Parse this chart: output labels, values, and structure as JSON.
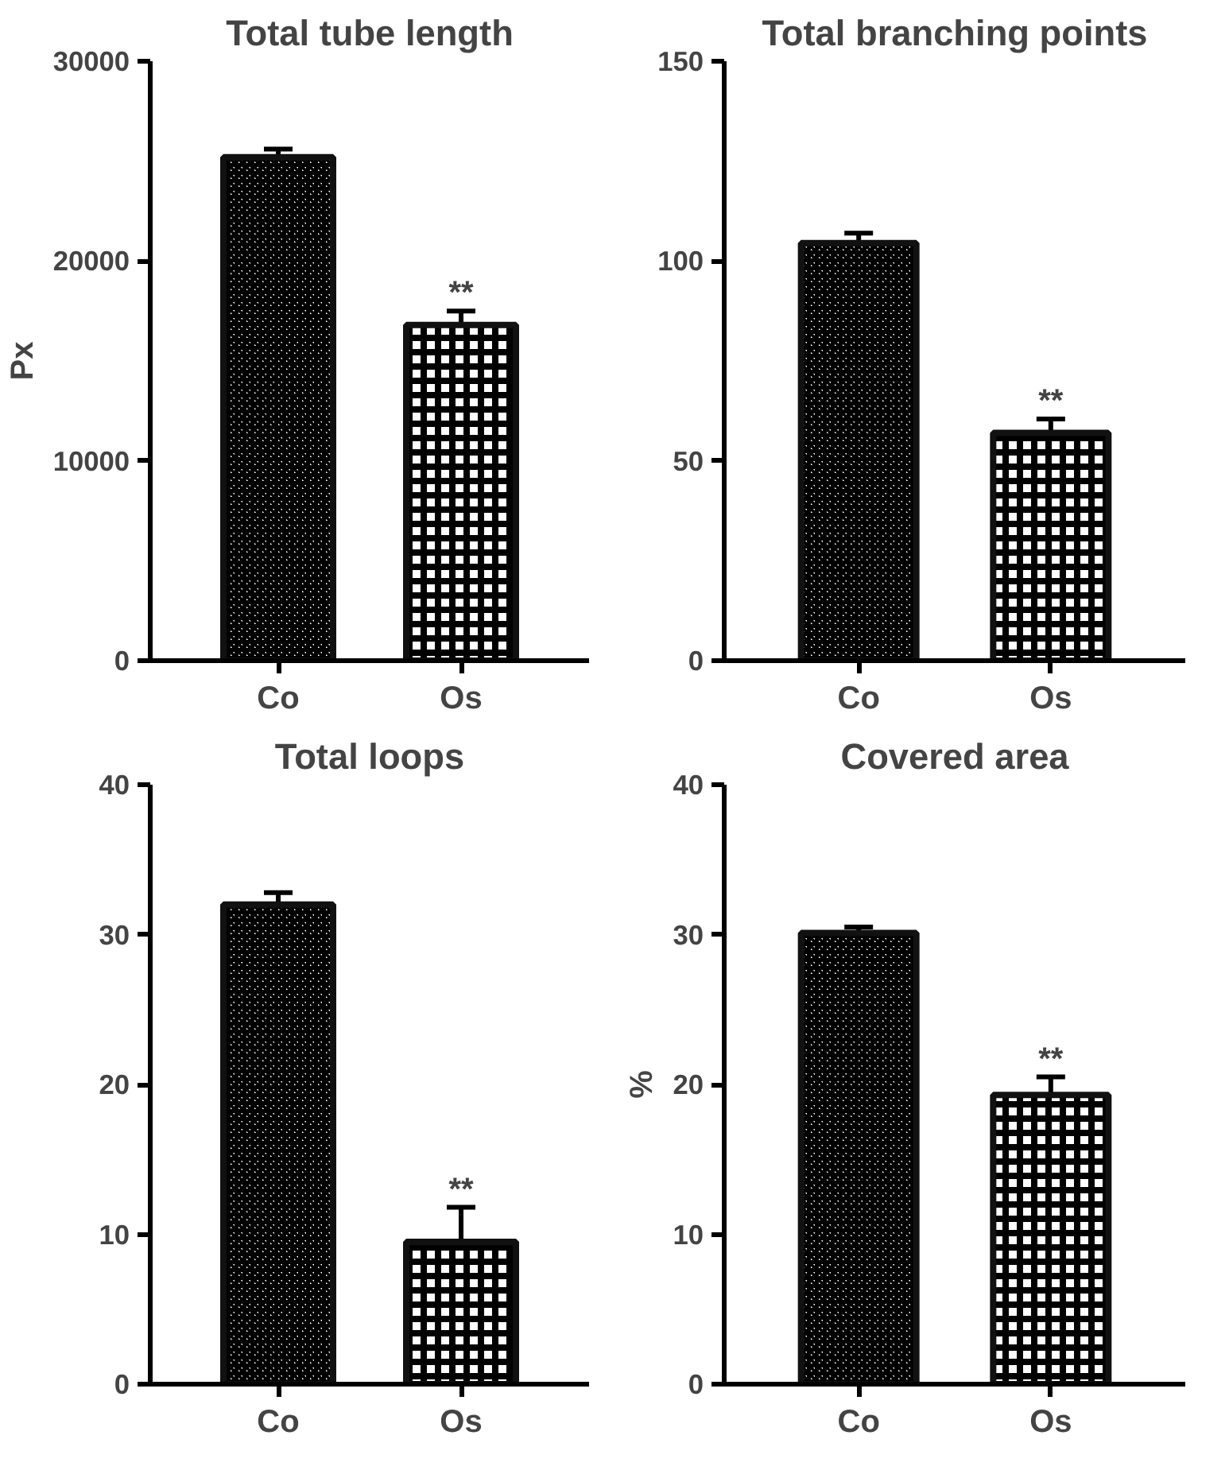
{
  "chart_data": [
    {
      "type": "bar",
      "title": "Total tube length",
      "ylabel": "Px",
      "categories": [
        "Co",
        "Os"
      ],
      "values": [
        25200,
        16800
      ],
      "errors": [
        400,
        700
      ],
      "ylim": [
        0,
        30000
      ],
      "yticks": [
        0,
        10000,
        20000,
        30000
      ],
      "grid": false,
      "annotations": [
        {
          "text": "**",
          "x": "Os",
          "y": 17500
        }
      ]
    },
    {
      "type": "bar",
      "title": "Total branching points",
      "categories": [
        "Co",
        "Os"
      ],
      "values": [
        104.5,
        57
      ],
      "errors": [
        2.5,
        3.5
      ],
      "ylim": [
        0,
        150
      ],
      "yticks": [
        0,
        50,
        100,
        150
      ],
      "grid": false,
      "annotations": [
        {
          "text": "**",
          "x": "Os",
          "y": 60.5
        }
      ]
    },
    {
      "type": "bar",
      "title": "Total loops",
      "categories": [
        "Co",
        "Os"
      ],
      "values": [
        32,
        9.5
      ],
      "errors": [
        0.8,
        2.3
      ],
      "ylim": [
        0,
        40
      ],
      "yticks": [
        0,
        10,
        20,
        30,
        40
      ],
      "grid": false,
      "annotations": [
        {
          "text": "**",
          "x": "Os",
          "y": 11.8
        }
      ]
    },
    {
      "type": "bar",
      "title": "Covered area",
      "ylabel": "%",
      "categories": [
        "Co",
        "Os"
      ],
      "values": [
        30.1,
        19.3
      ],
      "errors": [
        0.4,
        1.2
      ],
      "ylim": [
        0,
        40
      ],
      "yticks": [
        0,
        10,
        20,
        30,
        40
      ],
      "grid": false,
      "annotations": [
        {
          "text": "**",
          "x": "Os",
          "y": 20.5
        }
      ]
    }
  ]
}
